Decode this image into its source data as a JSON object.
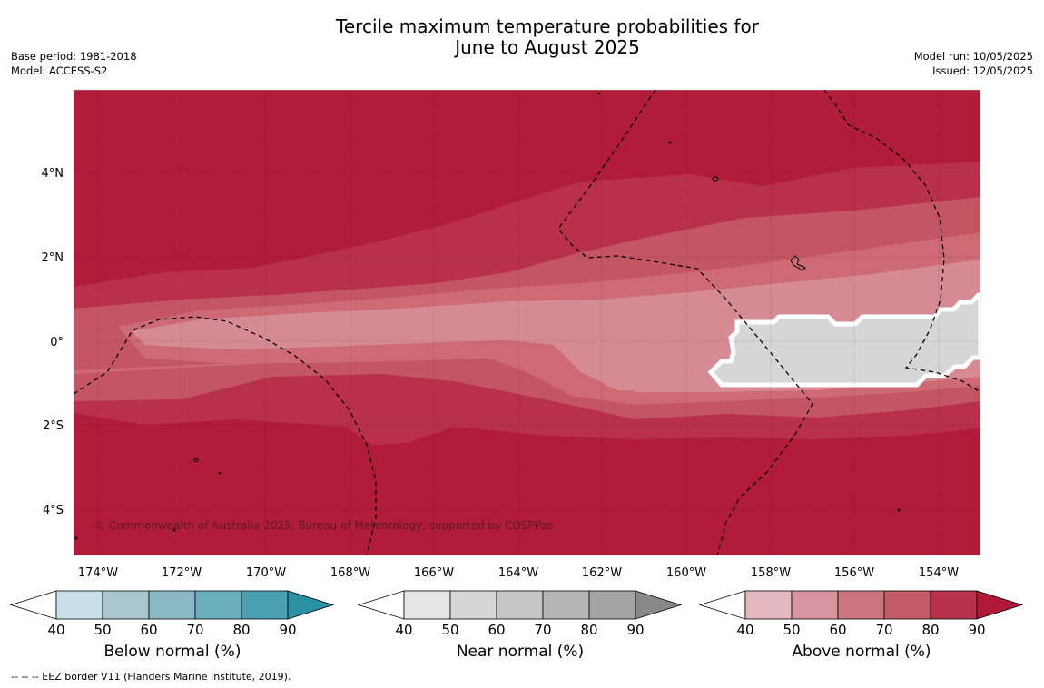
{
  "title": {
    "line1": "Tercile maximum temperature probabilities for",
    "line2": "June to August 2025"
  },
  "info_left": {
    "base_period": "Base period: 1981-2018",
    "model": "Model: ACCESS-S2"
  },
  "info_right": {
    "model_run": "Model run: 10/05/2025",
    "issued": "Issued: 12/05/2025"
  },
  "map": {
    "lat_labels": [
      "4°N",
      "2°N",
      "0°",
      "2°S",
      "4°S"
    ],
    "lon_labels": [
      "174°W",
      "172°W",
      "170°W",
      "168°W",
      "166°W",
      "164°W",
      "162°W",
      "160°W",
      "158°W",
      "156°W",
      "154°W"
    ],
    "copyright": "© Commonwealth of Australia 2025, Bureau of Meteorology, supported by COSPPac",
    "dominant_category": "Above normal",
    "colors": {
      "above_90": "#b11c38",
      "above_80": "#b9304a",
      "above_70": "#c45563",
      "above_60": "#cd6a74",
      "above_50": "#d68b94",
      "near_50": "#d6d6d6",
      "outline": "#ffffff"
    }
  },
  "colorbars": [
    {
      "label": "Below normal (%)",
      "ticks": [
        "40",
        "50",
        "60",
        "70",
        "80",
        "90"
      ],
      "colors": [
        "#c8e1e8",
        "#a8c8ce",
        "#8ab8c4",
        "#6aaebc",
        "#4aa0b0",
        "#2a90a4"
      ]
    },
    {
      "label": "Near normal (%)",
      "ticks": [
        "40",
        "50",
        "60",
        "70",
        "80",
        "90"
      ],
      "colors": [
        "#e6e6e6",
        "#d6d6d6",
        "#c6c6c6",
        "#b6b6b6",
        "#a4a4a4",
        "#888888"
      ]
    },
    {
      "label": "Above normal (%)",
      "ticks": [
        "40",
        "50",
        "60",
        "70",
        "80",
        "90"
      ],
      "colors": [
        "#e3b8be",
        "#d7959f",
        "#cc7680",
        "#c25b66",
        "#b8324a",
        "#b01a36"
      ]
    }
  ],
  "footnote": "-- -- -- EEZ border V11 (Flanders Marine Institute, 2019)."
}
